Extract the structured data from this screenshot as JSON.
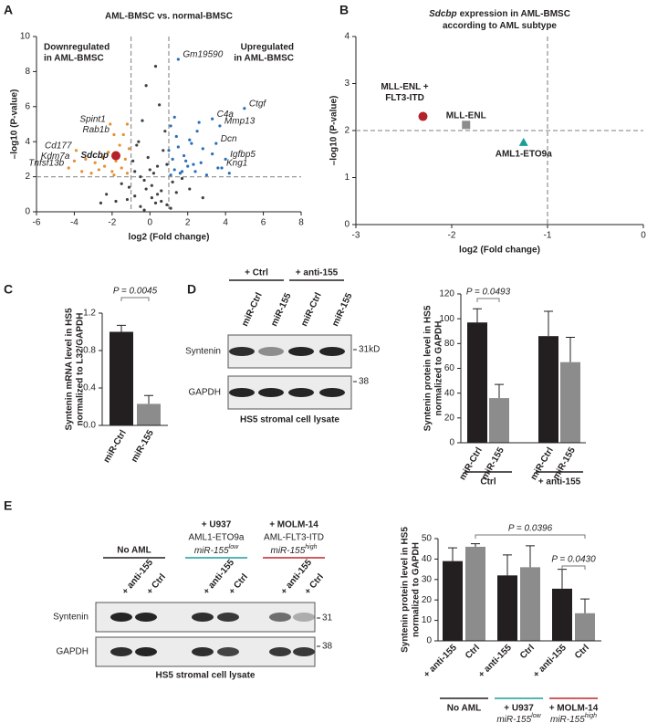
{
  "panel_labels": [
    "A",
    "B",
    "C",
    "D",
    "E"
  ],
  "chart_data": [
    {
      "type": "scatter",
      "title": "AML-BMSC vs. normal-BMSC",
      "x_label": "log2 (Fold change)",
      "y_label": "–log10 (P-value)",
      "xlim": [
        -6,
        8
      ],
      "xticks": [
        -6,
        -4,
        -2,
        0,
        2,
        4,
        6,
        8
      ],
      "ylim": [
        0,
        10
      ],
      "yticks": [
        0,
        2,
        4,
        6,
        8,
        10
      ],
      "ref_x": [
        -1,
        1
      ],
      "ref_y": 2,
      "group_labels": [
        {
          "lines": [
            "Downregulated",
            "in AML-BMSC"
          ],
          "color": "#e4902f",
          "side": "left"
        },
        {
          "lines": [
            "Upregulated",
            "in AML-BMSC"
          ],
          "color": "#2c6fb7",
          "side": "right"
        }
      ],
      "series": [
        {
          "color": "#3d4247",
          "marker": "dot",
          "x": [
            -0.5,
            0.3,
            -0.8,
            0.6,
            0.1,
            -0.3,
            0.9,
            -1.2,
            1.4,
            -1.8,
            2.1,
            -2.3,
            0.4,
            -0.1,
            0.7,
            -0.6,
            0.2,
            -0.9,
            1.1,
            -1.5,
            1.7,
            -2.6,
            2.8,
            -0.4,
            0.5,
            -0.2,
            0.8,
            -0.7,
            0.3,
            0.0,
            -0.3,
            0.6,
            -1.1,
            1.2,
            -0.5,
            0.4,
            -0.8,
            0.9,
            -0.2,
            0.1
          ],
          "y": [
            0.3,
            0.5,
            0.9,
            1.2,
            1.5,
            1.8,
            0.4,
            0.7,
            1.1,
            0.6,
            1.3,
            1.0,
            2.6,
            3.1,
            3.5,
            4.0,
            2.2,
            2.9,
            0.2,
            1.6,
            1.9,
            0.5,
            0.8,
            5.2,
            6.1,
            7.2,
            4.6,
            3.8,
            8.3,
            2.4,
            0.1,
            0.6,
            1.4,
            1.7,
            2.0,
            1.0,
            2.3,
            2.7,
            1.3,
            0.8
          ]
        },
        {
          "color": "#e4902f",
          "marker": "dot",
          "x": [
            -1.2,
            -1.5,
            -2.0,
            -2.4,
            -1.3,
            -1.8,
            -2.7,
            -3.1,
            -1.1,
            -1.6,
            -2.2,
            -3.4,
            -1.4,
            -2.9,
            -1.9,
            -1.2,
            -2.5,
            -3.6
          ],
          "y": [
            2.2,
            2.5,
            2.3,
            2.6,
            3.0,
            2.9,
            2.4,
            2.2,
            3.6,
            3.8,
            3.4,
            3.0,
            4.4,
            2.8,
            2.1,
            5.0,
            3.1,
            2.3
          ]
        },
        {
          "color": "#2c6fb7",
          "marker": "dot",
          "x": [
            1.1,
            1.3,
            1.6,
            2.0,
            2.4,
            1.2,
            1.8,
            2.7,
            3.0,
            1.5,
            2.2,
            3.3,
            1.4,
            2.5,
            1.1,
            1.9,
            2.8,
            3.6,
            1.3,
            2.1,
            4.2,
            1.7,
            2.3,
            1.0,
            2.6
          ],
          "y": [
            2.1,
            2.4,
            2.2,
            2.6,
            2.3,
            3.0,
            3.2,
            2.8,
            2.1,
            3.7,
            3.9,
            3.3,
            4.3,
            4.6,
            4.9,
            2.9,
            3.6,
            2.5,
            5.4,
            4.1,
            2.2,
            2.3,
            2.7,
            3.5,
            5.1
          ]
        },
        {
          "color": "#e4902f",
          "marker": "dot",
          "label_side": "left",
          "labels": [
            "Spint1",
            "Rab1b",
            "Cd177",
            "Kdm7a",
            "Tnfsf13b"
          ],
          "x": [
            -2.1,
            -1.9,
            -3.9,
            -4.0,
            -4.3
          ],
          "y": [
            5.0,
            4.4,
            3.5,
            2.9,
            2.5
          ]
        },
        {
          "color": "#2c6fb7",
          "marker": "dot",
          "label_side": "right",
          "labels": [
            "Gm19590",
            "C4a",
            "Ctgf",
            "Mmp13",
            "Dcn",
            "Igfbp5",
            "Kng1"
          ],
          "x": [
            1.5,
            3.3,
            5.0,
            3.7,
            3.5,
            4.0,
            3.8
          ],
          "y": [
            8.7,
            5.3,
            5.9,
            4.9,
            3.9,
            3.0,
            2.5
          ]
        },
        {
          "color": "#b5232a",
          "marker": "circle",
          "label_side": "left",
          "labels": [
            "Sdcbp"
          ],
          "x": [
            -1.8
          ],
          "y": [
            3.2
          ]
        }
      ]
    },
    {
      "type": "scatter",
      "title_italic": "Sdcbp",
      "title": [
        "expression in AML-BMSC",
        "according to AML subtype"
      ],
      "x_label": "log2 (Fold change)",
      "y_label": "–log10 (P-value)",
      "xlim": [
        -3,
        0
      ],
      "xticks": [
        -3,
        -2,
        -1,
        0
      ],
      "ylim": [
        0,
        4
      ],
      "yticks": [
        0,
        1,
        2,
        3,
        4
      ],
      "ref_x": [
        -1
      ],
      "ref_y": 2,
      "series": [
        {
          "color": "#b5232a",
          "marker": "circle",
          "label_side": "above",
          "labels": [
            [
              "MLL-ENL +",
              "FLT3-ITD"
            ]
          ],
          "x": [
            -2.3
          ],
          "y": [
            2.3
          ]
        },
        {
          "color": "#8c8c8c",
          "marker": "square",
          "label_side": "above",
          "labels": [
            [
              "MLL-ENL"
            ]
          ],
          "x": [
            -1.85
          ],
          "y": [
            2.12
          ]
        },
        {
          "color": "#1b9e9a",
          "marker": "triangle",
          "label_side": "below",
          "labels": [
            [
              "AML1-ETO9a"
            ]
          ],
          "x": [
            -1.25
          ],
          "y": [
            1.75
          ]
        }
      ]
    },
    {
      "type": "bar",
      "y_label": [
        "Syntenin mRNA level in HS5",
        "normalized to L32/GAPDH"
      ],
      "ylim": [
        0,
        1.2
      ],
      "yticks": [
        {
          "value": 0,
          "label": "0.0"
        },
        0.4,
        0.8,
        1.2
      ],
      "bar_colors": [
        "#231f20",
        "#8c8c8c"
      ],
      "categories": [
        "miR-Ctrl",
        "miR-155"
      ],
      "values": [
        1.0,
        0.23
      ],
      "errors": [
        0.07,
        0.09
      ],
      "significance": [
        "P = 0.0045"
      ]
    },
    {
      "type": "bar",
      "y_label": [
        "Syntenin protein level in HS5",
        "normalized to GAPDH"
      ],
      "ylim": [
        0,
        120
      ],
      "yticks": [
        0,
        20,
        40,
        60,
        80,
        100,
        120
      ],
      "bar_colors": [
        "#231f20",
        "#8c8c8c"
      ],
      "groups": [
        {
          "label": "Ctrl",
          "color": "#231f20",
          "categories": [
            "miR-Ctrl",
            "miR-155"
          ],
          "values": [
            97,
            36
          ],
          "errors": [
            11,
            11
          ]
        },
        {
          "label": "+ anti-155",
          "color": "#231f20",
          "categories": [
            "miR-Ctrl",
            "miR-155"
          ],
          "values": [
            86,
            65
          ],
          "errors": [
            20,
            20
          ]
        }
      ],
      "significance": [
        "P = 0.0493"
      ]
    },
    {
      "type": "bar",
      "y_label": [
        "Syntenin protein level in HS5",
        "normalized to GAPDH"
      ],
      "ylim": [
        0,
        50
      ],
      "yticks": [
        0,
        10,
        20,
        30,
        40,
        50
      ],
      "bar_colors": [
        "#231f20",
        "#8c8c8c"
      ],
      "groups": [
        {
          "label": "No AML",
          "color": "#231f20",
          "categories": [
            "+ anti-155",
            "Ctrl"
          ],
          "values": [
            39,
            46
          ],
          "errors": [
            6.5,
            1.5
          ]
        },
        {
          "label": "+ U937",
          "sublabel": {
            "text": "miR-155",
            "sup": "low"
          },
          "color": "#1b9e9a",
          "categories": [
            "+ anti-155",
            "Ctrl"
          ],
          "values": [
            32,
            36
          ],
          "errors": [
            10,
            10.5
          ]
        },
        {
          "label": "+ MOLM-14",
          "sublabel": {
            "text": "miR-155",
            "sup": "high"
          },
          "color": "#c1272d",
          "categories": [
            "+ anti-155",
            "Ctrl"
          ],
          "values": [
            25.5,
            13.5
          ],
          "errors": [
            9.5,
            7
          ]
        }
      ],
      "significance": [
        "P = 0.0396",
        "P = 0.0430"
      ]
    }
  ],
  "blot_d": {
    "headers": [
      {
        "lines": [
          "+ Ctrl"
        ]
      },
      {
        "lines": [
          "+ anti-155"
        ]
      }
    ],
    "lanes": [
      "miR-Ctrl",
      "miR-155",
      "miR-Ctrl",
      "miR-155"
    ],
    "rows": [
      {
        "label": "Syntenin",
        "marker": "31kD"
      },
      {
        "label": "GAPDH",
        "marker": "38"
      }
    ],
    "caption": "HS5 stromal cell lysate"
  },
  "blot_e": {
    "headers": [
      {
        "lines": [
          "No AML"
        ],
        "color": "#231f20"
      },
      {
        "lines": [
          "+ U937",
          "AML1-ETO9a"
        ],
        "mir": {
          "text": "miR-155",
          "sup": "low"
        },
        "color": "#1b9e9a"
      },
      {
        "lines": [
          "+ MOLM-14",
          "AML-FLT3-ITD"
        ],
        "mir": {
          "text": "miR-155",
          "sup": "high"
        },
        "color": "#c1272d"
      }
    ],
    "lanes": [
      "+ anti-155",
      "+ Ctrl",
      "+ anti-155",
      "+ Ctrl",
      "+ anti-155",
      "+ Ctrl"
    ],
    "rows": [
      {
        "label": "Syntenin",
        "marker": "31"
      },
      {
        "label": "GAPDH",
        "marker": "38"
      }
    ],
    "caption": "HS5 stromal cell lysate"
  }
}
